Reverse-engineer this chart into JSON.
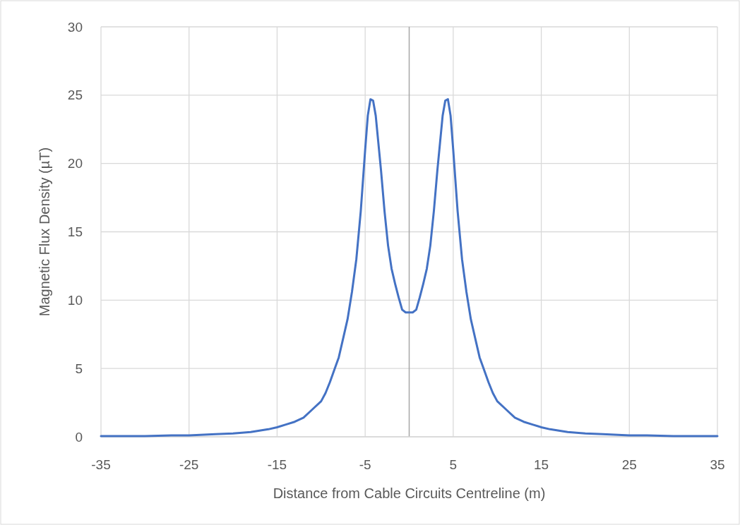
{
  "chart_data": {
    "type": "line",
    "xlabel": "Distance from Cable Circuits Centreline (m)",
    "ylabel": "Magnetic Flux Density (µT)",
    "series": [
      {
        "color": "#4472c4",
        "x": [
          -35,
          -32,
          -30,
          -27,
          -25,
          -22,
          -20,
          -18,
          -17,
          -16,
          -15,
          -14,
          -13,
          -12,
          -11,
          -10,
          -9.5,
          -9,
          -8.5,
          -8,
          -7.5,
          -7,
          -6.5,
          -6,
          -5.5,
          -5,
          -4.7,
          -4.4,
          -4.1,
          -3.8,
          -3.5,
          -3.2,
          -2.8,
          -2.4,
          -2,
          -1.6,
          -1.2,
          -0.8,
          -0.4,
          0,
          0.4,
          0.8,
          1.2,
          1.6,
          2,
          2.4,
          2.8,
          3.2,
          3.5,
          3.8,
          4.1,
          4.4,
          4.7,
          5,
          5.5,
          6,
          6.5,
          7,
          7.5,
          8,
          8.5,
          9,
          9.5,
          10,
          11,
          12,
          13,
          14,
          15,
          16,
          17,
          18,
          20,
          22,
          25,
          27,
          30,
          32,
          35
        ],
        "values": [
          0.05,
          0.05,
          0.05,
          0.1,
          0.1,
          0.2,
          0.25,
          0.35,
          0.45,
          0.55,
          0.7,
          0.9,
          1.1,
          1.4,
          2,
          2.6,
          3.2,
          4,
          4.9,
          5.8,
          7.2,
          8.6,
          10.6,
          13,
          16.5,
          21,
          23.5,
          24.7,
          24.6,
          23.5,
          21.5,
          19.5,
          16.5,
          14,
          12.3,
          11.2,
          10.2,
          9.3,
          9.1,
          9.1,
          9.1,
          9.3,
          10.2,
          11.2,
          12.3,
          14,
          16.5,
          19.5,
          21.5,
          23.5,
          24.6,
          24.7,
          23.5,
          21,
          16.5,
          13,
          10.6,
          8.6,
          7.2,
          5.8,
          4.9,
          4,
          3.2,
          2.6,
          2,
          1.4,
          1.1,
          0.9,
          0.7,
          0.55,
          0.45,
          0.35,
          0.25,
          0.2,
          0.1,
          0.1,
          0.05,
          0.05,
          0.05
        ]
      }
    ],
    "xlim": [
      -35,
      35
    ],
    "xticks": [
      -35,
      -25,
      -15,
      -5,
      5,
      15,
      25,
      35
    ],
    "ylim": [
      0,
      30
    ],
    "yticks": [
      0,
      5,
      10,
      15,
      20,
      25,
      30
    ],
    "grid": true,
    "marker": "none",
    "line_style": "solid",
    "ref_lines": [
      {
        "axis": "x",
        "value": 0,
        "color": "#a6a6a6"
      }
    ]
  }
}
